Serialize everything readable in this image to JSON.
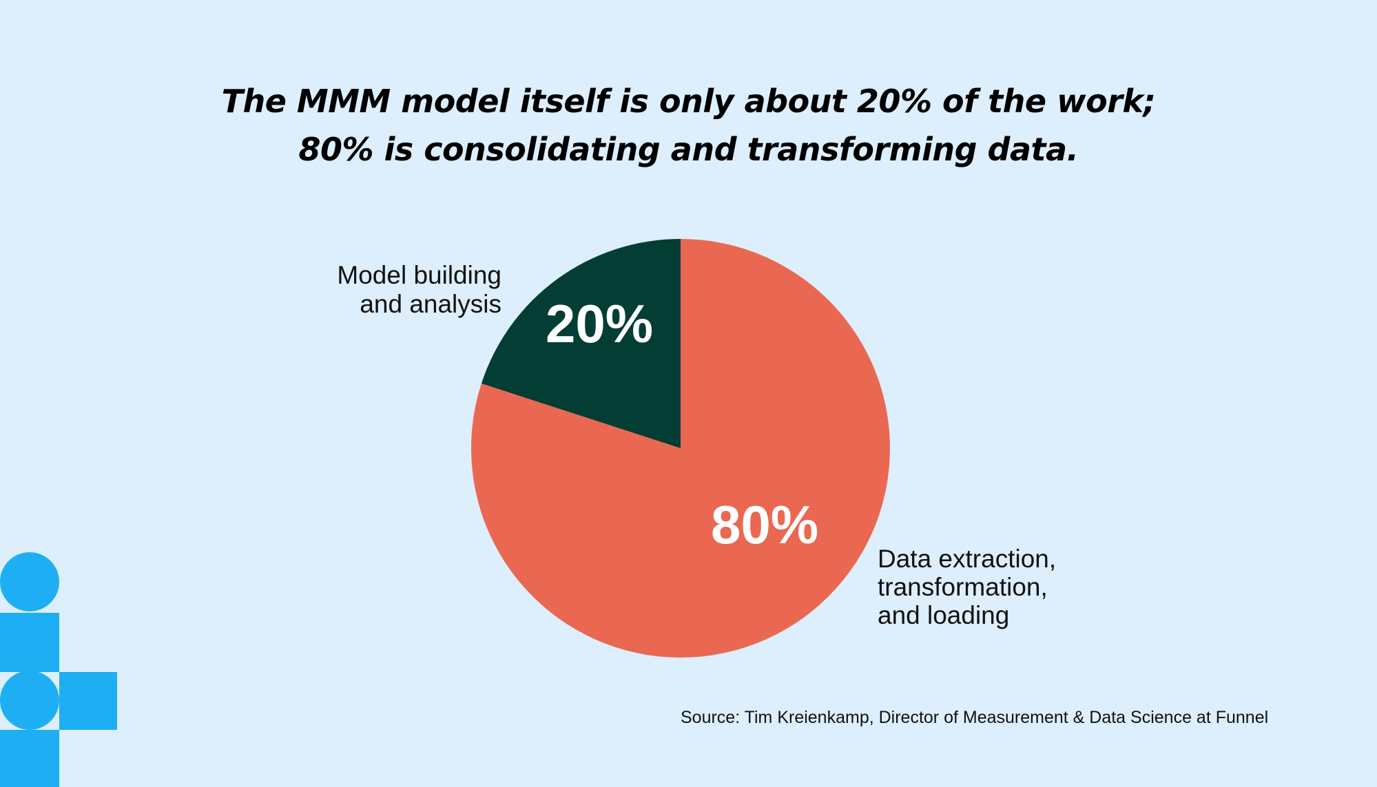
{
  "title": {
    "line1": "The MMM model itself is only about 20% of the work;",
    "line2": "80% is consolidating and transforming data."
  },
  "chart_data": {
    "type": "pie",
    "slices": [
      {
        "name": "Model building and analysis",
        "label_lines": [
          "Model building",
          "and analysis"
        ],
        "value": 20,
        "value_label": "20%",
        "color": "#043D33"
      },
      {
        "name": "Data extraction, transformation, and loading",
        "label_lines": [
          "Data extraction,",
          "transformation,",
          "and loading"
        ],
        "value": 80,
        "value_label": "80%",
        "color": "#EA6851"
      }
    ],
    "start_angle": "12 o'clock",
    "direction": "counter-clockwise"
  },
  "source": "Source: Tim Kreienkamp, Director of Measurement & Data Science at Funnel",
  "colors": {
    "background": "#DDEEFC",
    "accent_blue": "#1EAEF3"
  }
}
